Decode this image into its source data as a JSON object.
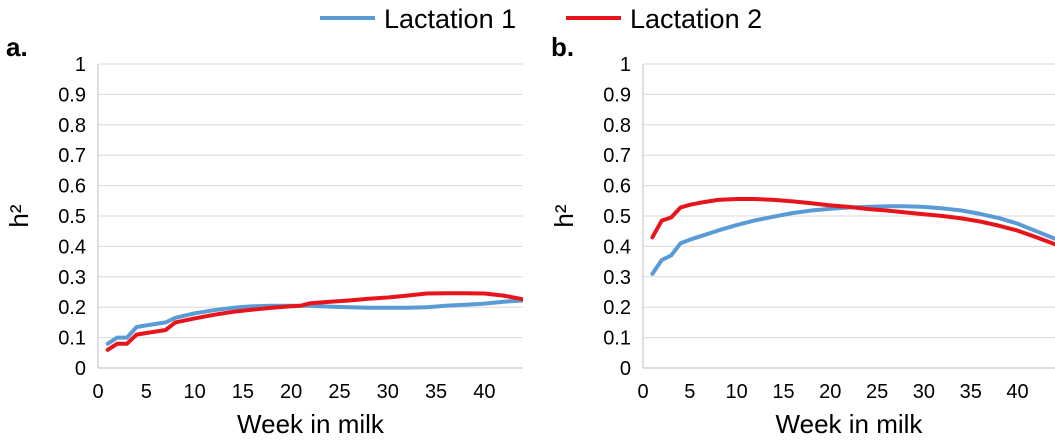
{
  "legend": {
    "items": [
      {
        "label": "Lactation 1",
        "color": "#5b9bd5"
      },
      {
        "label": "Lactation 2",
        "color": "#e8141c"
      }
    ]
  },
  "chart_data": [
    {
      "type": "line",
      "panel_label": "a.",
      "xlabel": "Week in milk",
      "ylabel": "h²",
      "xlim": [
        0,
        44
      ],
      "ylim": [
        0,
        1
      ],
      "x_ticks": [
        0,
        5,
        10,
        15,
        20,
        25,
        30,
        35,
        40
      ],
      "y_ticks": [
        "0",
        "0.1",
        "0.2",
        "0.3",
        "0.4",
        "0.5",
        "0.6",
        "0.7",
        "0.8",
        "0.9",
        "1"
      ],
      "grid": true,
      "series": [
        {
          "name": "Lactation 1",
          "color": "#5b9bd5",
          "x": [
            1,
            2,
            3,
            4,
            5,
            6,
            7,
            8,
            10,
            12,
            14,
            16,
            18,
            20,
            22,
            24,
            26,
            28,
            30,
            32,
            34,
            36,
            38,
            40,
            42,
            44
          ],
          "y": [
            0.08,
            0.1,
            0.1,
            0.135,
            0.14,
            0.145,
            0.15,
            0.165,
            0.18,
            0.19,
            0.198,
            0.203,
            0.205,
            0.205,
            0.205,
            0.202,
            0.2,
            0.198,
            0.198,
            0.198,
            0.2,
            0.205,
            0.208,
            0.212,
            0.218,
            0.222
          ]
        },
        {
          "name": "Lactation 2",
          "color": "#e8141c",
          "x": [
            1,
            2,
            3,
            4,
            5,
            6,
            7,
            8,
            10,
            12,
            14,
            16,
            18,
            20,
            21,
            22,
            24,
            26,
            28,
            30,
            32,
            34,
            36,
            38,
            40,
            42,
            44
          ],
          "y": [
            0.06,
            0.08,
            0.08,
            0.11,
            0.115,
            0.12,
            0.125,
            0.15,
            0.163,
            0.175,
            0.185,
            0.192,
            0.198,
            0.203,
            0.205,
            0.213,
            0.218,
            0.222,
            0.228,
            0.232,
            0.238,
            0.245,
            0.246,
            0.246,
            0.245,
            0.238,
            0.226
          ]
        }
      ]
    },
    {
      "type": "line",
      "panel_label": "b.",
      "xlabel": "Week in milk",
      "ylabel": "h²",
      "xlim": [
        0,
        44
      ],
      "ylim": [
        0,
        1
      ],
      "x_ticks": [
        0,
        5,
        10,
        15,
        20,
        25,
        30,
        35,
        40
      ],
      "y_ticks": [
        "0",
        "0.1",
        "0.2",
        "0.3",
        "0.4",
        "0.5",
        "0.6",
        "0.7",
        "0.8",
        "0.9",
        "1"
      ],
      "grid": true,
      "series": [
        {
          "name": "Lactation 1",
          "color": "#5b9bd5",
          "x": [
            1,
            2,
            3,
            4,
            5,
            6,
            8,
            10,
            12,
            14,
            16,
            18,
            20,
            22,
            24,
            26,
            28,
            30,
            32,
            34,
            36,
            38,
            40,
            42,
            44
          ],
          "y": [
            0.31,
            0.355,
            0.37,
            0.41,
            0.422,
            0.432,
            0.452,
            0.47,
            0.486,
            0.498,
            0.51,
            0.518,
            0.524,
            0.528,
            0.53,
            0.532,
            0.532,
            0.53,
            0.525,
            0.518,
            0.507,
            0.493,
            0.475,
            0.45,
            0.425
          ]
        },
        {
          "name": "Lactation 2",
          "color": "#e8141c",
          "x": [
            1,
            2,
            3,
            4,
            5,
            6,
            8,
            10,
            12,
            14,
            16,
            18,
            20,
            22,
            24,
            26,
            28,
            30,
            32,
            34,
            36,
            38,
            40,
            42,
            44
          ],
          "y": [
            0.43,
            0.485,
            0.495,
            0.528,
            0.537,
            0.543,
            0.553,
            0.556,
            0.556,
            0.553,
            0.548,
            0.542,
            0.535,
            0.53,
            0.523,
            0.518,
            0.512,
            0.506,
            0.5,
            0.492,
            0.482,
            0.468,
            0.452,
            0.43,
            0.407
          ]
        }
      ]
    }
  ]
}
